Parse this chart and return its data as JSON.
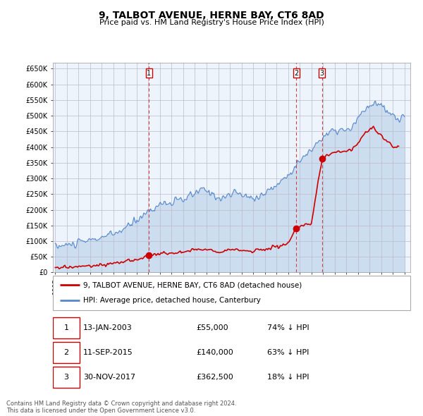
{
  "title": "9, TALBOT AVENUE, HERNE BAY, CT6 8AD",
  "subtitle": "Price paid vs. HM Land Registry's House Price Index (HPI)",
  "ylim": [
    0,
    670000
  ],
  "yticks": [
    0,
    50000,
    100000,
    150000,
    200000,
    250000,
    300000,
    350000,
    400000,
    450000,
    500000,
    550000,
    600000,
    650000
  ],
  "xlim_start": 1994.8,
  "xlim_end": 2025.5,
  "sale_color": "#cc0000",
  "hpi_color": "#5588cc",
  "hpi_fill_color": "#ccddf0",
  "legend_label_sale": "9, TALBOT AVENUE, HERNE BAY, CT6 8AD (detached house)",
  "legend_label_hpi": "HPI: Average price, detached house, Canterbury",
  "transactions": [
    {
      "id": 1,
      "date_label": "13-JAN-2003",
      "year": 2003.04,
      "price": 55000,
      "hpi_pct": "74% ↓ HPI"
    },
    {
      "id": 2,
      "date_label": "11-SEP-2015",
      "year": 2015.7,
      "price": 140000,
      "hpi_pct": "63% ↓ HPI"
    },
    {
      "id": 3,
      "date_label": "30-NOV-2017",
      "year": 2017.92,
      "price": 362500,
      "hpi_pct": "18% ↓ HPI"
    }
  ],
  "footnote": "Contains HM Land Registry data © Crown copyright and database right 2024.\nThis data is licensed under the Open Government Licence v3.0.",
  "background_color": "#ffffff",
  "plot_bg_color": "#eef4fb",
  "grid_color": "#bbbbcc"
}
